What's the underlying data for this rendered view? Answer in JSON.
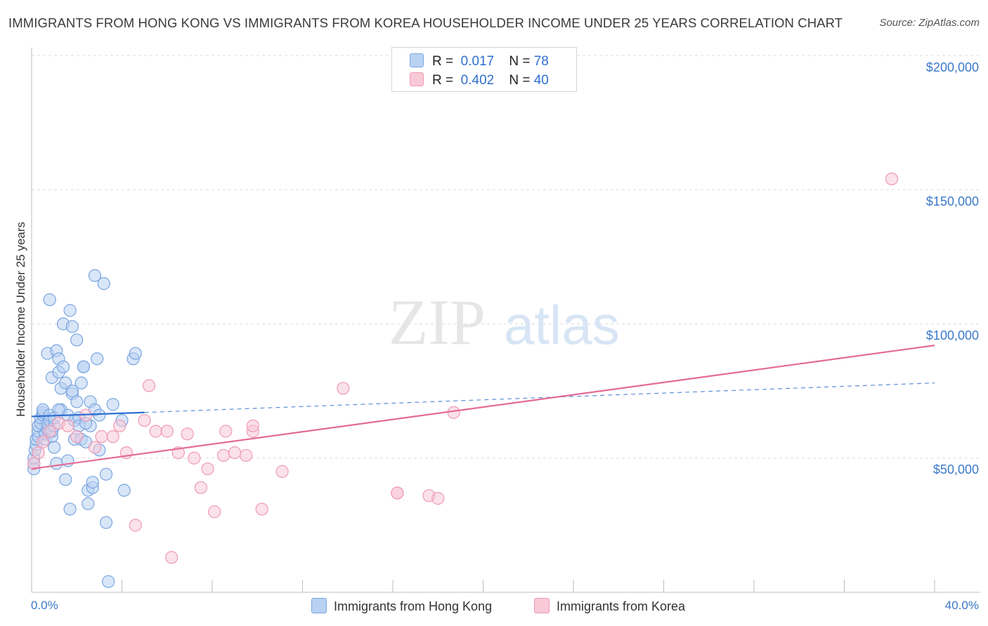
{
  "chart_data": {
    "type": "scatter",
    "title": "IMMIGRANTS FROM HONG KONG VS IMMIGRANTS FROM KOREA HOUSEHOLDER INCOME UNDER 25 YEARS CORRELATION CHART",
    "source": "Source: ZipAtlas.com",
    "ylabel": "Householder Income Under 25 years",
    "xlabel": "",
    "xlim": [
      0,
      40
    ],
    "ylim": [
      0,
      200000
    ],
    "x_tick_labels": {
      "min": "0.0%",
      "max": "40.0%"
    },
    "y_ticks": [
      {
        "value": 50000,
        "label": "$50,000"
      },
      {
        "value": 100000,
        "label": "$100,000"
      },
      {
        "value": 150000,
        "label": "$150,000"
      },
      {
        "value": 200000,
        "label": "$200,000"
      }
    ],
    "grid": true,
    "watermark": {
      "zip": "ZIP",
      "atlas": "atlas"
    },
    "legend": {
      "r_label": "R =",
      "n_label": "N =",
      "entries": [
        {
          "r": "0.017",
          "n": "78"
        },
        {
          "r": "0.402",
          "n": "40"
        }
      ]
    },
    "series": [
      {
        "name": "Immigrants from Hong Kong",
        "color": "#7aa5e0",
        "fill": "#b9d2f3",
        "points": [
          [
            0.1,
            46000
          ],
          [
            0.1,
            48000
          ],
          [
            0.1,
            50000
          ],
          [
            0.15,
            53000
          ],
          [
            0.2,
            55000
          ],
          [
            0.2,
            57000
          ],
          [
            0.3,
            58000
          ],
          [
            0.3,
            60000
          ],
          [
            0.3,
            62000
          ],
          [
            0.4,
            63000
          ],
          [
            0.4,
            65000
          ],
          [
            0.5,
            66000
          ],
          [
            0.5,
            67000
          ],
          [
            0.5,
            68000
          ],
          [
            0.6,
            57000
          ],
          [
            0.6,
            59000
          ],
          [
            0.7,
            61000
          ],
          [
            0.7,
            63000
          ],
          [
            0.8,
            64000
          ],
          [
            0.8,
            66000
          ],
          [
            0.9,
            58000
          ],
          [
            0.9,
            60000
          ],
          [
            1.0,
            62000
          ],
          [
            1.0,
            65000
          ],
          [
            0.7,
            89000
          ],
          [
            0.8,
            109000
          ],
          [
            0.9,
            80000
          ],
          [
            1.0,
            54000
          ],
          [
            1.1,
            48000
          ],
          [
            1.1,
            90000
          ],
          [
            1.2,
            87000
          ],
          [
            1.2,
            82000
          ],
          [
            1.3,
            76000
          ],
          [
            1.3,
            68000
          ],
          [
            1.4,
            100000
          ],
          [
            1.4,
            84000
          ],
          [
            1.5,
            78000
          ],
          [
            1.5,
            42000
          ],
          [
            1.6,
            66000
          ],
          [
            1.6,
            49000
          ],
          [
            1.7,
            105000
          ],
          [
            1.7,
            31000
          ],
          [
            1.8,
            74000
          ],
          [
            1.8,
            99000
          ],
          [
            1.9,
            57000
          ],
          [
            1.9,
            64000
          ],
          [
            2.0,
            94000
          ],
          [
            2.0,
            71000
          ],
          [
            2.1,
            65000
          ],
          [
            2.1,
            62000
          ],
          [
            2.2,
            78000
          ],
          [
            2.2,
            57000
          ],
          [
            2.3,
            84000
          ],
          [
            2.3,
            84000
          ],
          [
            2.4,
            56000
          ],
          [
            2.5,
            33000
          ],
          [
            2.5,
            38000
          ],
          [
            2.6,
            62000
          ],
          [
            2.6,
            71000
          ],
          [
            2.7,
            39000
          ],
          [
            2.7,
            41000
          ],
          [
            2.8,
            118000
          ],
          [
            2.8,
            68000
          ],
          [
            2.9,
            87000
          ],
          [
            3.0,
            66000
          ],
          [
            3.2,
            115000
          ],
          [
            3.3,
            44000
          ],
          [
            3.3,
            26000
          ],
          [
            3.4,
            4000
          ],
          [
            4.0,
            64000
          ],
          [
            4.1,
            38000
          ],
          [
            4.5,
            87000
          ],
          [
            4.6,
            89000
          ],
          [
            3.6,
            70000
          ],
          [
            3.0,
            53000
          ],
          [
            2.4,
            63000
          ],
          [
            1.8,
            75000
          ],
          [
            1.2,
            68000
          ]
        ]
      },
      {
        "name": "Immigrants from Korea",
        "color": "#ee9ab5",
        "fill": "#f8c9d7",
        "points": [
          [
            0.1,
            48000
          ],
          [
            0.3,
            52000
          ],
          [
            0.5,
            56000
          ],
          [
            0.8,
            60000
          ],
          [
            1.2,
            63000
          ],
          [
            1.6,
            62000
          ],
          [
            2.0,
            58000
          ],
          [
            2.4,
            66000
          ],
          [
            2.8,
            54000
          ],
          [
            3.1,
            58000
          ],
          [
            3.6,
            58000
          ],
          [
            3.9,
            62000
          ],
          [
            4.2,
            52000
          ],
          [
            4.6,
            25000
          ],
          [
            5.0,
            64000
          ],
          [
            5.2,
            77000
          ],
          [
            5.5,
            60000
          ],
          [
            6.0,
            60000
          ],
          [
            6.2,
            13000
          ],
          [
            6.5,
            52000
          ],
          [
            6.9,
            59000
          ],
          [
            7.2,
            50000
          ],
          [
            7.5,
            39000
          ],
          [
            7.8,
            46000
          ],
          [
            8.1,
            30000
          ],
          [
            8.5,
            51000
          ],
          [
            8.6,
            60000
          ],
          [
            9.0,
            52000
          ],
          [
            9.5,
            51000
          ],
          [
            9.8,
            60000
          ],
          [
            9.8,
            62000
          ],
          [
            10.2,
            31000
          ],
          [
            11.1,
            45000
          ],
          [
            13.8,
            76000
          ],
          [
            16.2,
            37000
          ],
          [
            16.2,
            37000
          ],
          [
            17.6,
            36000
          ],
          [
            18.0,
            35000
          ],
          [
            18.7,
            67000
          ],
          [
            38.1,
            154000
          ]
        ]
      }
    ],
    "trendlines": [
      {
        "series": "Immigrants from Hong Kong",
        "solid": {
          "x": [
            0,
            5
          ],
          "y": [
            65500,
            67000
          ]
        },
        "dashed": {
          "x": [
            5,
            40
          ],
          "y": [
            67000,
            78000
          ]
        }
      },
      {
        "series": "Immigrants from Korea",
        "solid": {
          "x": [
            0,
            40
          ],
          "y": [
            46000,
            92000
          ]
        }
      }
    ]
  }
}
